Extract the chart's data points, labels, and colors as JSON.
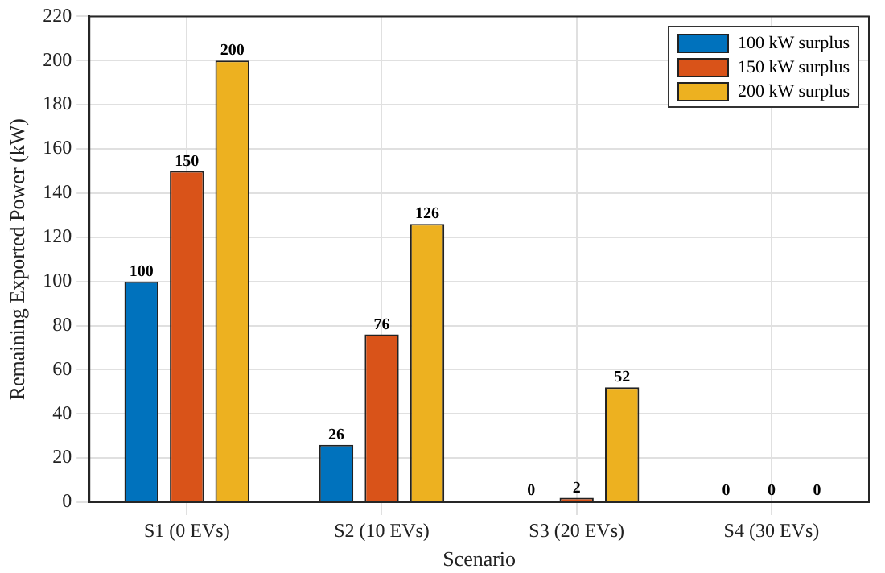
{
  "chart_data": {
    "type": "bar",
    "xlabel": "Scenario",
    "ylabel": "Remaining Exported Power (kW)",
    "categories": [
      "S1 (0 EVs)",
      "S2 (10 EVs)",
      "S3 (20 EVs)",
      "S4 (30 EVs)"
    ],
    "series": [
      {
        "name": "100 kW surplus",
        "color": "#0072bd",
        "values": [
          100,
          26,
          0,
          0
        ]
      },
      {
        "name": "150 kW surplus",
        "color": "#d95319",
        "values": [
          150,
          76,
          2,
          0
        ]
      },
      {
        "name": "200 kW surplus",
        "color": "#edb120",
        "values": [
          200,
          126,
          52,
          0
        ]
      }
    ],
    "ylim": [
      0,
      220
    ],
    "yticks": [
      0,
      20,
      40,
      60,
      80,
      100,
      120,
      140,
      160,
      180,
      200,
      220
    ],
    "grid": true,
    "legend": "top right",
    "data_labels": true
  }
}
